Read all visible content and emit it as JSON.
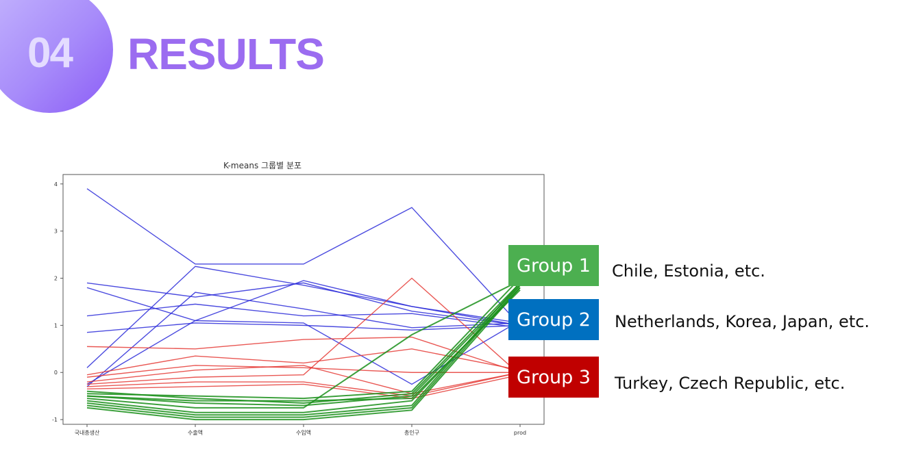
{
  "header": {
    "number": "04",
    "title": "RESULTS"
  },
  "groups": [
    {
      "label": "Group 1",
      "color": "#4caf50",
      "description": "Chile, Estonia, etc."
    },
    {
      "label": "Group 2",
      "color": "#0070c0",
      "description": "Netherlands, Korea, Japan, etc."
    },
    {
      "label": "Group 3",
      "color": "#c00000",
      "description": "Turkey, Czech Republic, etc."
    }
  ],
  "chart_data": {
    "type": "line",
    "title": "K-means 그룹별 분포",
    "categories": [
      "국내총생산",
      "수출액",
      "수입액",
      "총인구",
      "prod"
    ],
    "ylim": [
      -1.1,
      4.2
    ],
    "yticks": [
      4,
      3,
      2,
      1,
      0
    ],
    "ytick_bottom_label": "-1",
    "series_colors": {
      "blue": "#2b2bd9",
      "red": "#e53935",
      "green": "#1a8f1a"
    },
    "series": [
      {
        "group": "blue",
        "values": [
          3.9,
          2.3,
          2.3,
          3.5,
          1.0
        ]
      },
      {
        "group": "blue",
        "values": [
          1.9,
          1.6,
          1.9,
          1.3,
          1.0
        ]
      },
      {
        "group": "blue",
        "values": [
          1.8,
          1.1,
          1.05,
          -0.25,
          1.1
        ]
      },
      {
        "group": "blue",
        "values": [
          1.2,
          1.45,
          1.2,
          1.25,
          0.95
        ]
      },
      {
        "group": "blue",
        "values": [
          0.85,
          1.05,
          1.0,
          0.9,
          1.0
        ]
      },
      {
        "group": "blue",
        "values": [
          0.1,
          2.25,
          1.85,
          1.4,
          1.05
        ]
      },
      {
        "group": "blue",
        "values": [
          -0.25,
          1.1,
          1.95,
          1.4,
          1.0
        ]
      },
      {
        "group": "blue",
        "values": [
          -0.3,
          1.7,
          1.35,
          0.95,
          1.05
        ]
      },
      {
        "group": "red",
        "values": [
          0.55,
          0.5,
          0.7,
          0.75,
          0.0
        ]
      },
      {
        "group": "red",
        "values": [
          -0.05,
          0.35,
          0.2,
          0.5,
          0.05
        ]
      },
      {
        "group": "red",
        "values": [
          -0.1,
          0.15,
          0.1,
          0.0,
          0.0
        ]
      },
      {
        "group": "red",
        "values": [
          -0.25,
          -0.1,
          -0.05,
          2.0,
          -0.05
        ]
      },
      {
        "group": "red",
        "values": [
          -0.3,
          -0.2,
          -0.2,
          -0.5,
          0.0
        ]
      },
      {
        "group": "red",
        "values": [
          -0.35,
          -0.3,
          -0.25,
          -0.55,
          -0.05
        ]
      },
      {
        "group": "red",
        "values": [
          -0.2,
          0.05,
          0.15,
          -0.45,
          0.0
        ]
      },
      {
        "group": "green",
        "values": [
          -0.45,
          -0.5,
          -0.55,
          -0.4,
          2.0
        ]
      },
      {
        "group": "green",
        "values": [
          -0.5,
          -0.65,
          -0.7,
          -0.5,
          1.85
        ]
      },
      {
        "group": "green",
        "values": [
          -0.55,
          -0.75,
          -0.75,
          0.8,
          1.95
        ]
      },
      {
        "group": "green",
        "values": [
          -0.6,
          -0.85,
          -0.85,
          -0.6,
          1.8
        ]
      },
      {
        "group": "green",
        "values": [
          -0.65,
          -0.9,
          -0.9,
          -0.7,
          1.9
        ]
      },
      {
        "group": "green",
        "values": [
          -0.7,
          -0.95,
          -0.95,
          -0.75,
          1.85
        ]
      },
      {
        "group": "green",
        "values": [
          -0.75,
          -1.0,
          -1.0,
          -0.8,
          1.8
        ]
      },
      {
        "group": "green",
        "values": [
          -0.5,
          -0.6,
          -0.6,
          -0.55,
          1.75
        ]
      },
      {
        "group": "green",
        "values": [
          -0.4,
          -0.55,
          -0.65,
          -0.45,
          1.9
        ]
      }
    ]
  }
}
